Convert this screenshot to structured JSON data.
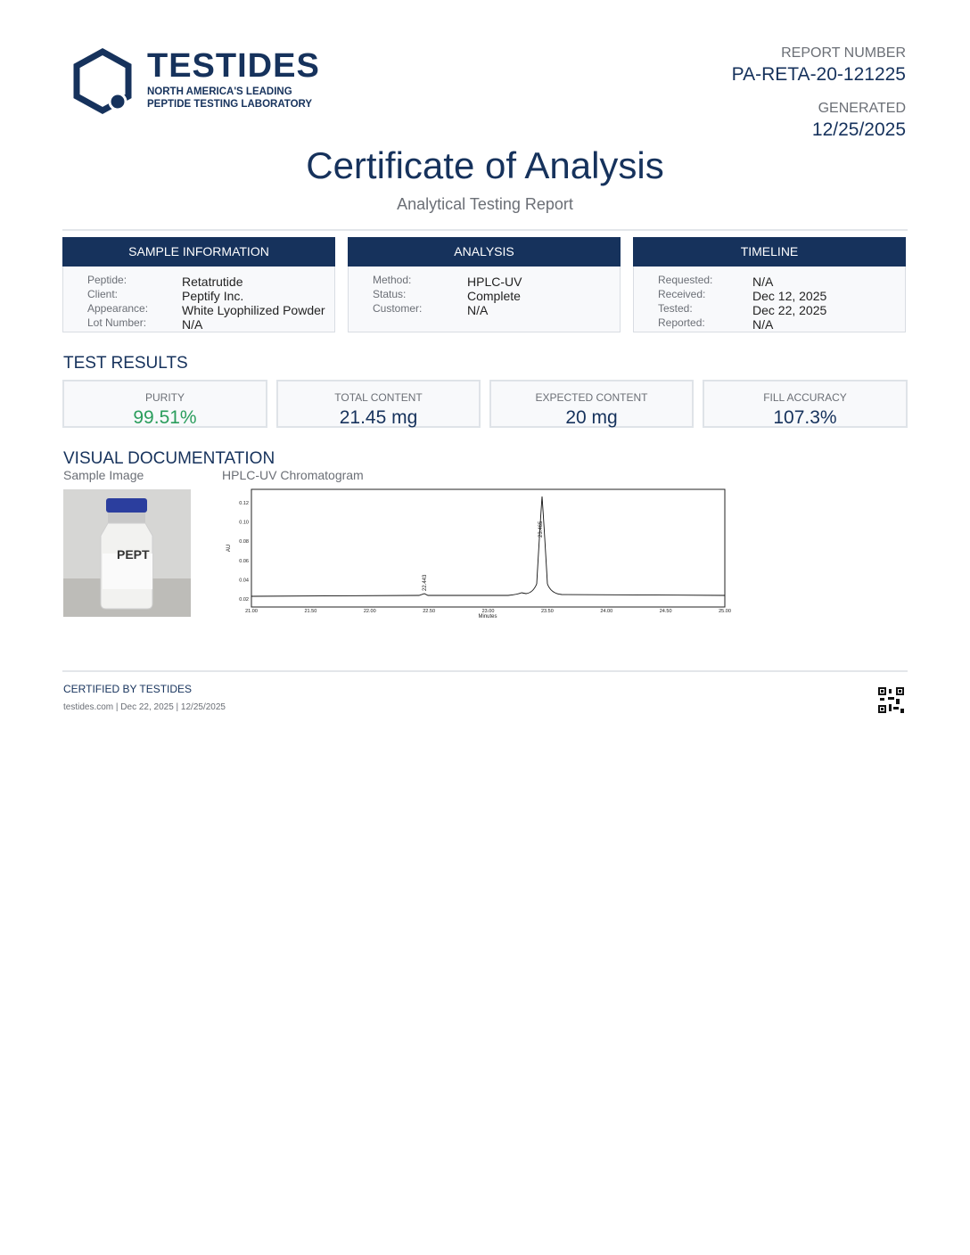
{
  "header": {
    "brand": "TESTIDES",
    "tagline_1": "NORTH AMERICA'S LEADING",
    "tagline_2": "PEPTIDE TESTING LABORATORY",
    "report_number_label": "REPORT NUMBER",
    "report_number": "PA-RETA-20-121225",
    "generated_label": "GENERATED",
    "generated": "12/25/2025"
  },
  "title": "Certificate of Analysis",
  "subtitle": "Analytical Testing Report",
  "info_panels": [
    {
      "title": "SAMPLE INFORMATION",
      "rows": [
        [
          "Peptide:",
          "Retatrutide"
        ],
        [
          "Client:",
          "Peptify Inc."
        ],
        [
          "Appearance:",
          "White Lyophilized Powder"
        ],
        [
          "Lot Number:",
          "N/A"
        ]
      ]
    },
    {
      "title": "ANALYSIS",
      "rows": [
        [
          "Method:",
          "HPLC-UV"
        ],
        [
          "Status:",
          "Complete"
        ],
        [
          "Customer:",
          "N/A"
        ]
      ]
    },
    {
      "title": "TIMELINE",
      "rows": [
        [
          "Requested:",
          "N/A"
        ],
        [
          "Received:",
          "Dec 12, 2025"
        ],
        [
          "Tested:",
          "Dec 22, 2025"
        ],
        [
          "Reported:",
          "N/A"
        ]
      ]
    }
  ],
  "test_results": {
    "title": "TEST RESULTS",
    "cards": [
      {
        "label": "PURITY",
        "value": "99.51%"
      },
      {
        "label": "TOTAL CONTENT",
        "value": "21.45 mg"
      },
      {
        "label": "EXPECTED CONTENT",
        "value": "20 mg"
      },
      {
        "label": "FILL ACCURACY",
        "value": "107.3%"
      }
    ]
  },
  "visual_documentation": {
    "title": "VISUAL DOCUMENTATION",
    "sample_image_caption": "Sample Image",
    "chromatogram_caption": "HPLC-UV Chromatogram",
    "chromatogram": {
      "y_axis_label": "AU",
      "x_axis_label": "Minutes",
      "y_tick_labels": [
        "0.12",
        "0.10",
        "0.08",
        "0.06",
        "0.04",
        "0.02"
      ],
      "x_tick_labels": [
        "21.00",
        "21.50",
        "22.00",
        "22.50",
        "23.00",
        "23.50",
        "24.00",
        "24.50",
        "25.00"
      ],
      "peak_labels": [
        "22.443",
        "23.465"
      ]
    }
  },
  "footer": {
    "certified": "CERTIFIED BY TESTIDES",
    "meta": "testides.com | Dec 22, 2025 | 12/25/2025"
  }
}
